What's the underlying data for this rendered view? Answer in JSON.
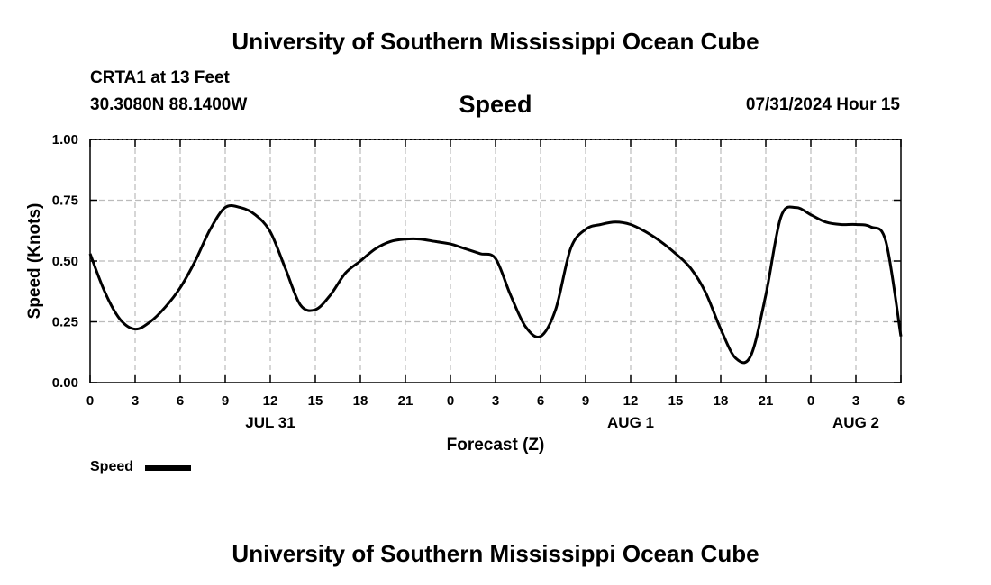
{
  "header": {
    "title": "University of Southern Mississippi Ocean Cube",
    "station": "CRTA1 at 13 Feet",
    "coordinates": "30.3080N  88.1400W",
    "variable": "Speed",
    "timestamp": "07/31/2024 Hour 15"
  },
  "footer": {
    "title": "University of Southern Mississippi Ocean Cube"
  },
  "legend": {
    "entries": [
      {
        "label": "Speed",
        "color": "#000000"
      }
    ]
  },
  "chart_data": {
    "type": "line",
    "title": "Speed",
    "xlabel": "Forecast (Z)",
    "ylabel": "Speed (Knots)",
    "xlim": [
      0,
      54
    ],
    "ylim": [
      0,
      1
    ],
    "x_ticks": [
      0,
      3,
      6,
      9,
      12,
      15,
      18,
      21,
      24,
      27,
      30,
      33,
      36,
      39,
      42,
      45,
      48,
      51,
      54
    ],
    "x_tick_labels": [
      "0",
      "3",
      "6",
      "9",
      "12",
      "15",
      "18",
      "21",
      "0",
      "3",
      "6",
      "9",
      "12",
      "15",
      "18",
      "21",
      "0",
      "3",
      "6"
    ],
    "date_labels": [
      {
        "x": 12,
        "label": "JUL 31"
      },
      {
        "x": 36,
        "label": "AUG 1"
      },
      {
        "x": 51,
        "label": "AUG 2"
      }
    ],
    "y_ticks": [
      0,
      0.25,
      0.5,
      0.75,
      1.0
    ],
    "y_tick_labels": [
      "0.00",
      "0.25",
      "0.50",
      "0.75",
      "1.00"
    ],
    "grid": true,
    "legend_position": "bottom-left",
    "series": [
      {
        "name": "Speed",
        "color": "#000000",
        "x": [
          0,
          1,
          2,
          3,
          4,
          5,
          6,
          7,
          8,
          9,
          10,
          11,
          12,
          13,
          14,
          15,
          16,
          17,
          18,
          19,
          20,
          21,
          22,
          23,
          24,
          25,
          26,
          27,
          28,
          29,
          30,
          31,
          32,
          33,
          34,
          35,
          36,
          37,
          38,
          39,
          40,
          41,
          42,
          43,
          44,
          45,
          46,
          47,
          48,
          49,
          50,
          51,
          52,
          53,
          54
        ],
        "values": [
          0.53,
          0.37,
          0.26,
          0.22,
          0.25,
          0.31,
          0.39,
          0.5,
          0.63,
          0.72,
          0.72,
          0.69,
          0.62,
          0.47,
          0.32,
          0.3,
          0.36,
          0.45,
          0.5,
          0.55,
          0.58,
          0.59,
          0.59,
          0.58,
          0.57,
          0.55,
          0.53,
          0.51,
          0.36,
          0.23,
          0.19,
          0.3,
          0.55,
          0.63,
          0.65,
          0.66,
          0.65,
          0.62,
          0.58,
          0.53,
          0.47,
          0.37,
          0.22,
          0.1,
          0.11,
          0.36,
          0.68,
          0.72,
          0.69,
          0.66,
          0.65,
          0.65,
          0.64,
          0.58,
          0.19
        ]
      }
    ]
  }
}
